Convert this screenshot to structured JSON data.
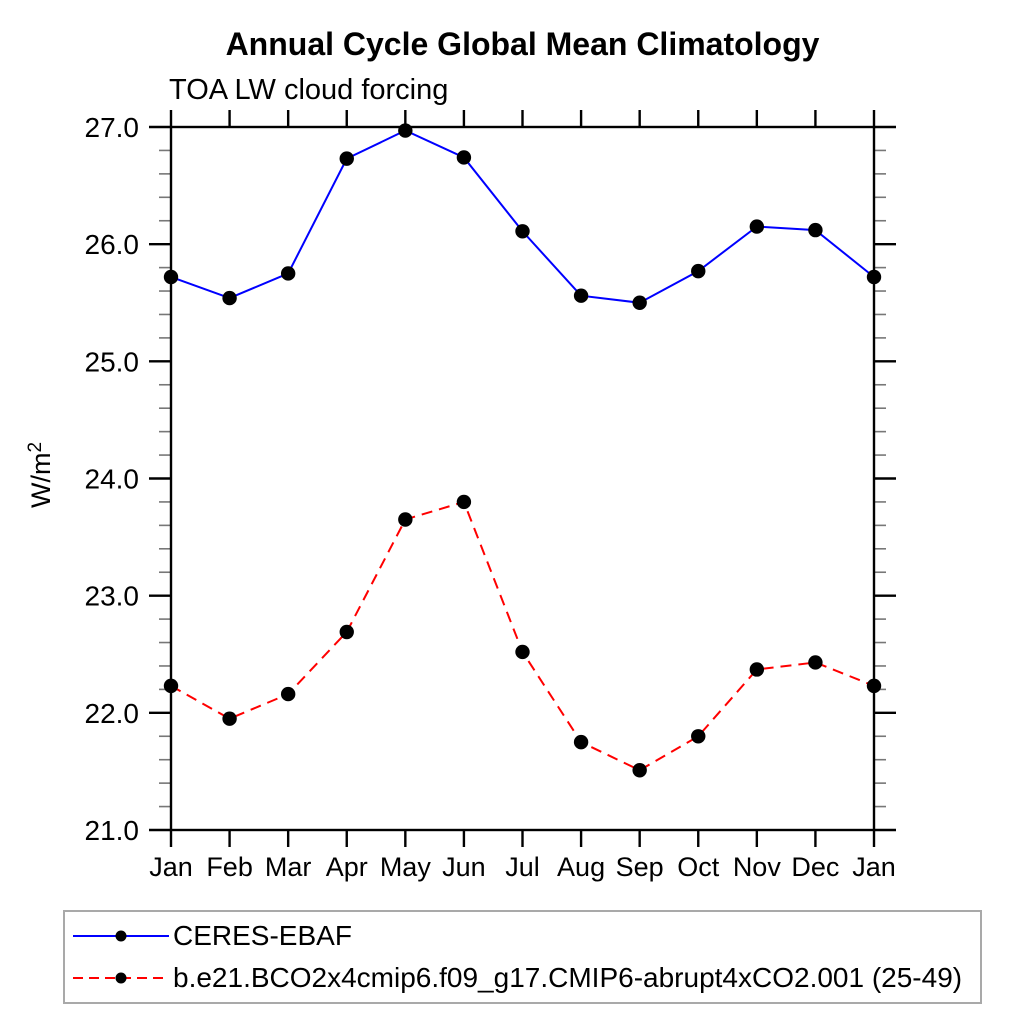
{
  "chart_data": {
    "type": "line",
    "title": "Annual Cycle Global Mean Climatology",
    "subtitle": "TOA LW cloud forcing",
    "xlabel": "",
    "ylabel": "W/m²",
    "ylim": [
      21.0,
      27.0
    ],
    "ytick_labels": [
      "21.0",
      "22.0",
      "23.0",
      "24.0",
      "25.0",
      "26.0",
      "27.0"
    ],
    "yticks_major": [
      21.0,
      22.0,
      23.0,
      24.0,
      25.0,
      26.0,
      27.0
    ],
    "ytick_minor_step": 0.2,
    "grid": false,
    "legend_position": "bottom-left-box",
    "categories": [
      "Jan",
      "Feb",
      "Mar",
      "Apr",
      "May",
      "Jun",
      "Jul",
      "Aug",
      "Sep",
      "Oct",
      "Nov",
      "Dec",
      "Jan"
    ],
    "series": [
      {
        "name": "CERES-EBAF",
        "line_color": "#0000ff",
        "line_style": "solid",
        "marker": "filled-circle",
        "marker_color": "#000000",
        "values": [
          25.72,
          25.54,
          25.75,
          26.73,
          26.97,
          26.74,
          26.11,
          25.56,
          25.5,
          25.77,
          26.15,
          26.12,
          25.72
        ]
      },
      {
        "name": "b.e21.BCO2x4cmip6.f09_g17.CMIP6-abrupt4xCO2.001 (25-49)",
        "line_color": "#ff0000",
        "line_style": "dashed",
        "marker": "filled-circle",
        "marker_color": "#000000",
        "values": [
          22.23,
          21.95,
          22.16,
          22.69,
          23.65,
          23.8,
          22.52,
          21.75,
          21.51,
          21.8,
          22.37,
          22.43,
          22.23
        ]
      }
    ],
    "axis_color": "#000000",
    "minor_tick_color": "#777777"
  }
}
